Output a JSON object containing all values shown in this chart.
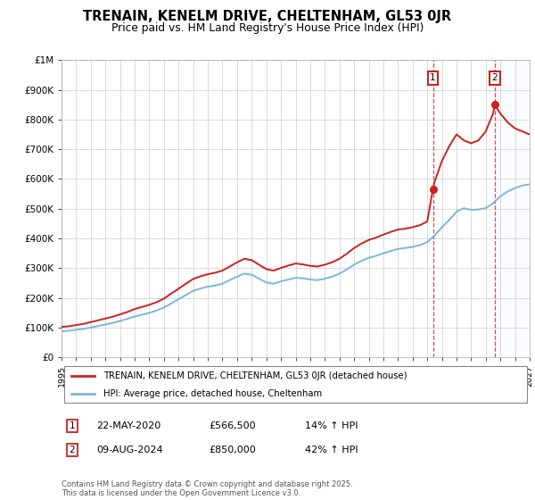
{
  "title": "TRENAIN, KENELM DRIVE, CHELTENHAM, GL53 0JR",
  "subtitle": "Price paid vs. HM Land Registry's House Price Index (HPI)",
  "ylim": [
    0,
    1000000
  ],
  "xlim_start": 1995,
  "xlim_end": 2027,
  "legend_line1": "TRENAIN, KENELM DRIVE, CHELTENHAM, GL53 0JR (detached house)",
  "legend_line2": "HPI: Average price, detached house, Cheltenham",
  "sale1_date": "22-MAY-2020",
  "sale1_price": "£566,500",
  "sale1_hpi": "14% ↑ HPI",
  "sale2_date": "09-AUG-2024",
  "sale2_price": "£850,000",
  "sale2_hpi": "42% ↑ HPI",
  "copyright": "Contains HM Land Registry data © Crown copyright and database right 2025.\nThis data is licensed under the Open Government Licence v3.0.",
  "hpi_color": "#7ab8d9",
  "price_color": "#cc2222",
  "sale1_x": 2020.39,
  "sale1_y": 566500,
  "sale2_x": 2024.61,
  "sale2_y": 850000,
  "shade_color": "#ddeeff",
  "ytick_vals": [
    0,
    100000,
    200000,
    300000,
    400000,
    500000,
    600000,
    700000,
    800000,
    900000,
    1000000
  ],
  "ytick_labels": [
    "£0",
    "£100K",
    "£200K",
    "£300K",
    "£400K",
    "£500K",
    "£600K",
    "£700K",
    "£800K",
    "£900K",
    "£1M"
  ],
  "hpi_years": [
    1995,
    1995.5,
    1996,
    1996.5,
    1997,
    1997.5,
    1998,
    1998.5,
    1999,
    1999.5,
    2000,
    2000.5,
    2001,
    2001.5,
    2002,
    2002.5,
    2003,
    2003.5,
    2004,
    2004.5,
    2005,
    2005.5,
    2006,
    2006.5,
    2007,
    2007.5,
    2008,
    2008.5,
    2009,
    2009.5,
    2010,
    2010.5,
    2011,
    2011.5,
    2012,
    2012.5,
    2013,
    2013.5,
    2014,
    2014.5,
    2015,
    2015.5,
    2016,
    2016.5,
    2017,
    2017.5,
    2018,
    2018.5,
    2019,
    2019.5,
    2020,
    2020.5,
    2021,
    2021.5,
    2022,
    2022.5,
    2023,
    2023.5,
    2024,
    2024.5,
    2025,
    2025.5,
    2026,
    2026.5,
    2027
  ],
  "hpi_vals": [
    88000,
    90000,
    93000,
    96000,
    101000,
    106000,
    111000,
    116000,
    123000,
    130000,
    138000,
    144000,
    150000,
    158000,
    168000,
    182000,
    196000,
    210000,
    224000,
    232000,
    238000,
    242000,
    248000,
    260000,
    272000,
    282000,
    278000,
    265000,
    252000,
    248000,
    256000,
    262000,
    268000,
    266000,
    262000,
    260000,
    265000,
    272000,
    282000,
    296000,
    312000,
    325000,
    335000,
    342000,
    350000,
    358000,
    365000,
    368000,
    372000,
    378000,
    388000,
    410000,
    438000,
    462000,
    490000,
    502000,
    496000,
    498000,
    502000,
    518000,
    542000,
    558000,
    570000,
    578000,
    582000
  ],
  "price_years": [
    1995,
    1995.5,
    1996,
    1996.5,
    1997,
    1997.5,
    1998,
    1998.5,
    1999,
    1999.5,
    2000,
    2000.5,
    2001,
    2001.5,
    2002,
    2002.5,
    2003,
    2003.5,
    2004,
    2004.5,
    2005,
    2005.5,
    2006,
    2006.5,
    2007,
    2007.5,
    2008,
    2008.5,
    2009,
    2009.5,
    2010,
    2010.5,
    2011,
    2011.5,
    2012,
    2012.5,
    2013,
    2013.5,
    2014,
    2014.5,
    2015,
    2015.5,
    2016,
    2016.5,
    2017,
    2017.5,
    2018,
    2018.5,
    2019,
    2019.5,
    2020,
    2020.39,
    2020.5,
    2021,
    2021.5,
    2022,
    2022.5,
    2023,
    2023.5,
    2024,
    2024.5,
    2024.61,
    2025,
    2025.5,
    2026,
    2026.5,
    2027
  ],
  "price_vals": [
    103000,
    105000,
    109000,
    113000,
    119000,
    125000,
    131000,
    137000,
    145000,
    153000,
    163000,
    170000,
    177000,
    186000,
    198000,
    215000,
    231000,
    248000,
    264000,
    273000,
    280000,
    285000,
    292000,
    306000,
    320000,
    332000,
    327000,
    312000,
    297000,
    292000,
    301000,
    309000,
    316000,
    313000,
    308000,
    306000,
    312000,
    320000,
    332000,
    349000,
    368000,
    383000,
    395000,
    403000,
    413000,
    422000,
    430000,
    433000,
    438000,
    445000,
    457000,
    566500,
    590000,
    660000,
    710000,
    750000,
    730000,
    720000,
    730000,
    760000,
    820000,
    850000,
    820000,
    790000,
    770000,
    760000,
    750000
  ]
}
